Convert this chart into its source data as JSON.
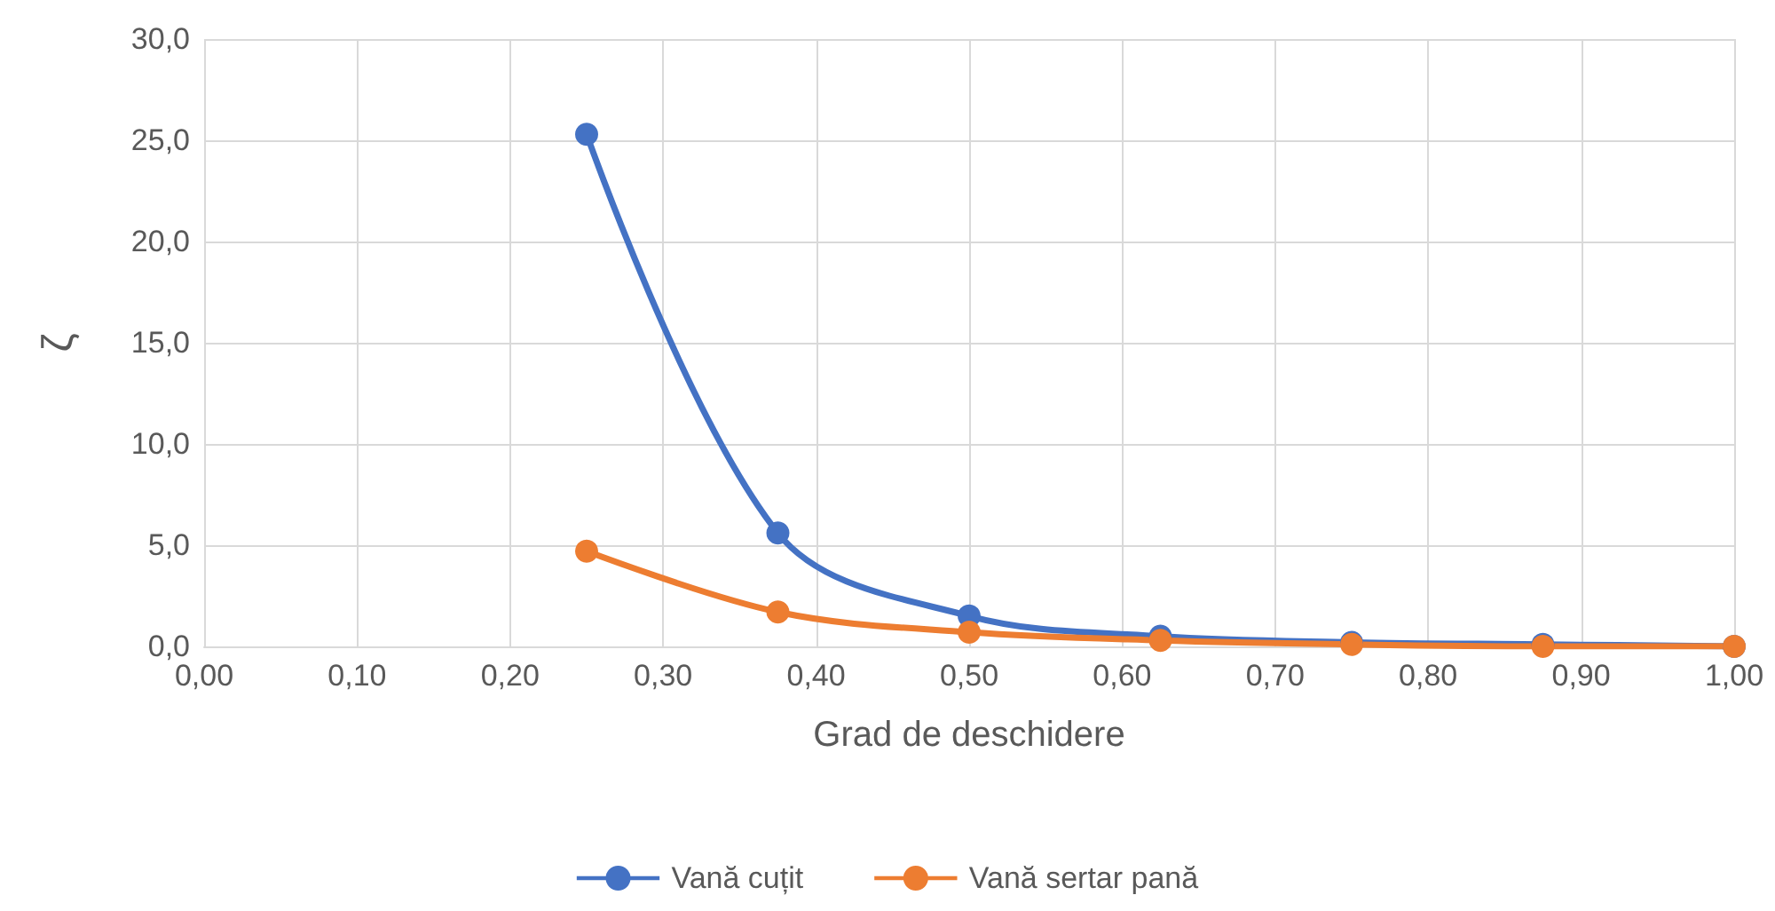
{
  "chart_data": {
    "type": "line",
    "xlabel": "Grad de deschidere",
    "ylabel": "ζ",
    "x": [
      0.25,
      0.375,
      0.5,
      0.625,
      0.75,
      0.875,
      1.0
    ],
    "series": [
      {
        "name": "Vană cuțit",
        "color": "#4472c4",
        "values": [
          25.3,
          5.6,
          1.5,
          0.5,
          0.2,
          0.1,
          0.0
        ]
      },
      {
        "name": "Vană sertar pană",
        "color": "#ed7d31",
        "values": [
          4.7,
          1.7,
          0.7,
          0.3,
          0.1,
          0.0,
          0.0
        ]
      }
    ],
    "xlim": [
      0,
      1
    ],
    "xticks": [
      {
        "value": 0,
        "label": "0,00"
      },
      {
        "value": 0.1,
        "label": "0,10"
      },
      {
        "value": 0.2,
        "label": "0,20"
      },
      {
        "value": 0.3,
        "label": "0,30"
      },
      {
        "value": 0.4,
        "label": "0,40"
      },
      {
        "value": 0.5,
        "label": "0,50"
      },
      {
        "value": 0.6,
        "label": "0,60"
      },
      {
        "value": 0.7,
        "label": "0,70"
      },
      {
        "value": 0.8,
        "label": "0,80"
      },
      {
        "value": 0.9,
        "label": "0,90"
      },
      {
        "value": 1,
        "label": "1,00"
      }
    ],
    "ylim": [
      0,
      30
    ],
    "yticks": [
      {
        "value": 0,
        "label": "0,0"
      },
      {
        "value": 5,
        "label": "5,0"
      },
      {
        "value": 10,
        "label": "10,0"
      },
      {
        "value": 15,
        "label": "15,0"
      },
      {
        "value": 20,
        "label": "20,0"
      },
      {
        "value": 25,
        "label": "25,0"
      },
      {
        "value": 30,
        "label": "30,0"
      }
    ],
    "grid": true,
    "legend": "bottom",
    "marker": "circle",
    "line_style": "solid"
  }
}
